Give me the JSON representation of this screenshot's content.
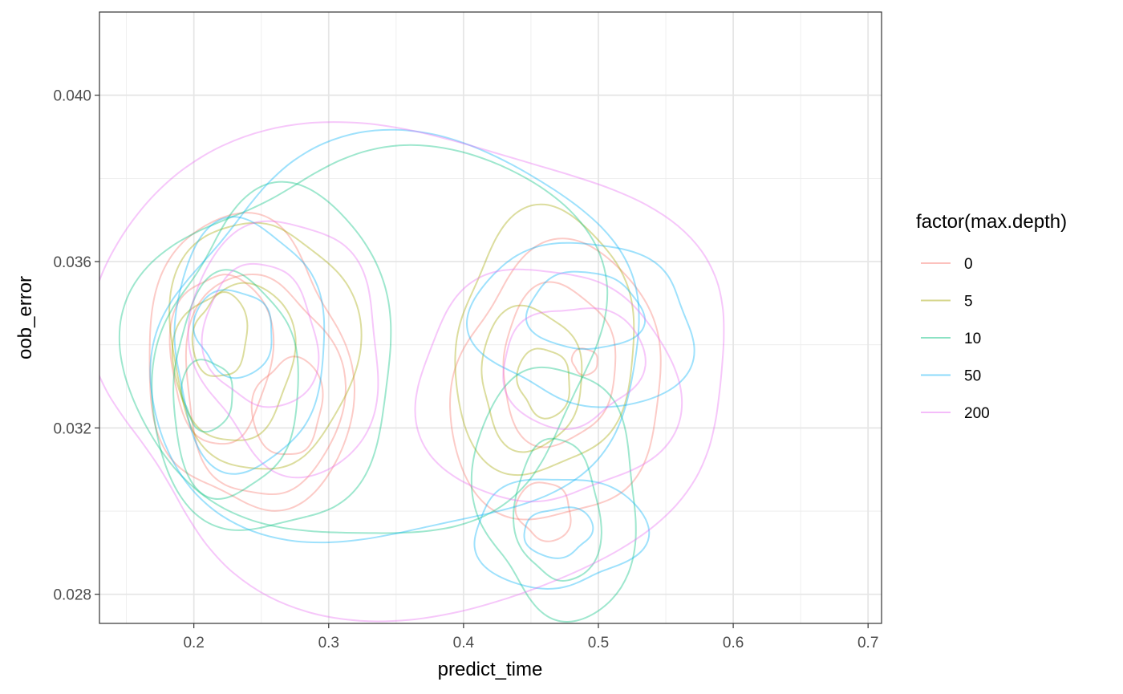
{
  "chart_data": {
    "type": "contour",
    "xlabel": "predict_time",
    "ylabel": "oob_error",
    "xlim": [
      0.13,
      0.71
    ],
    "ylim": [
      0.0273,
      0.042
    ],
    "x_ticks": [
      0.2,
      0.3,
      0.4,
      0.5,
      0.6,
      0.7
    ],
    "x_tick_labels": [
      "0.2",
      "0.3",
      "0.4",
      "0.5",
      "0.6",
      "0.7"
    ],
    "y_ticks": [
      0.028,
      0.032,
      0.036,
      0.04
    ],
    "y_tick_labels": [
      "0.028",
      "0.032",
      "0.036",
      "0.040"
    ],
    "grid": true,
    "legend": {
      "title": "factor(max.depth)",
      "placement": "right"
    },
    "series": [
      {
        "name": "0",
        "color": "#F8766D",
        "contours": [
          {
            "cx": 0.24,
            "cy": 0.0335,
            "rx": 0.075,
            "ry": 0.0035
          },
          {
            "cx": 0.25,
            "cy": 0.033,
            "rx": 0.055,
            "ry": 0.0028
          },
          {
            "cx": 0.22,
            "cy": 0.0337,
            "rx": 0.035,
            "ry": 0.0022
          },
          {
            "cx": 0.27,
            "cy": 0.0325,
            "rx": 0.025,
            "ry": 0.0012
          },
          {
            "cx": 0.47,
            "cy": 0.033,
            "rx": 0.08,
            "ry": 0.0032
          },
          {
            "cx": 0.47,
            "cy": 0.0335,
            "rx": 0.045,
            "ry": 0.0018
          },
          {
            "cx": 0.49,
            "cy": 0.0336,
            "rx": 0.01,
            "ry": 0.0003
          },
          {
            "cx": 0.46,
            "cy": 0.03,
            "rx": 0.02,
            "ry": 0.0007
          }
        ]
      },
      {
        "name": "5",
        "color": "#A3A500",
        "contours": [
          {
            "cx": 0.25,
            "cy": 0.034,
            "rx": 0.065,
            "ry": 0.0032
          },
          {
            "cx": 0.23,
            "cy": 0.0336,
            "rx": 0.042,
            "ry": 0.002
          },
          {
            "cx": 0.22,
            "cy": 0.0342,
            "rx": 0.02,
            "ry": 0.001
          },
          {
            "cx": 0.46,
            "cy": 0.034,
            "rx": 0.07,
            "ry": 0.003
          },
          {
            "cx": 0.45,
            "cy": 0.0332,
            "rx": 0.04,
            "ry": 0.0016
          },
          {
            "cx": 0.46,
            "cy": 0.0331,
            "rx": 0.02,
            "ry": 0.0008
          }
        ]
      },
      {
        "name": "10",
        "color": "#00BF7D",
        "contours": [
          {
            "cx": 0.33,
            "cy": 0.034,
            "rx": 0.17,
            "ry": 0.0048
          },
          {
            "cx": 0.26,
            "cy": 0.0335,
            "rx": 0.09,
            "ry": 0.004
          },
          {
            "cx": 0.23,
            "cy": 0.033,
            "rx": 0.05,
            "ry": 0.0025
          },
          {
            "cx": 0.21,
            "cy": 0.0328,
            "rx": 0.02,
            "ry": 0.0008
          },
          {
            "cx": 0.47,
            "cy": 0.0305,
            "rx": 0.06,
            "ry": 0.003
          },
          {
            "cx": 0.47,
            "cy": 0.03,
            "rx": 0.03,
            "ry": 0.0018
          }
        ]
      },
      {
        "name": "50",
        "color": "#00B0F6",
        "contours": [
          {
            "cx": 0.35,
            "cy": 0.034,
            "rx": 0.19,
            "ry": 0.0046
          },
          {
            "cx": 0.24,
            "cy": 0.034,
            "rx": 0.06,
            "ry": 0.0028
          },
          {
            "cx": 0.23,
            "cy": 0.0343,
            "rx": 0.03,
            "ry": 0.001
          },
          {
            "cx": 0.49,
            "cy": 0.0345,
            "rx": 0.08,
            "ry": 0.002
          },
          {
            "cx": 0.49,
            "cy": 0.0348,
            "rx": 0.04,
            "ry": 0.001
          },
          {
            "cx": 0.47,
            "cy": 0.0295,
            "rx": 0.06,
            "ry": 0.0014
          },
          {
            "cx": 0.47,
            "cy": 0.0295,
            "rx": 0.025,
            "ry": 0.0006
          }
        ]
      },
      {
        "name": "200",
        "color": "#E76BF3",
        "contours": [
          {
            "cx": 0.36,
            "cy": 0.0335,
            "rx": 0.25,
            "ry": 0.0055
          },
          {
            "cx": 0.27,
            "cy": 0.034,
            "rx": 0.07,
            "ry": 0.003
          },
          {
            "cx": 0.25,
            "cy": 0.0342,
            "rx": 0.04,
            "ry": 0.0018
          },
          {
            "cx": 0.46,
            "cy": 0.033,
            "rx": 0.09,
            "ry": 0.003
          },
          {
            "cx": 0.48,
            "cy": 0.0335,
            "rx": 0.05,
            "ry": 0.0015
          }
        ]
      }
    ]
  }
}
